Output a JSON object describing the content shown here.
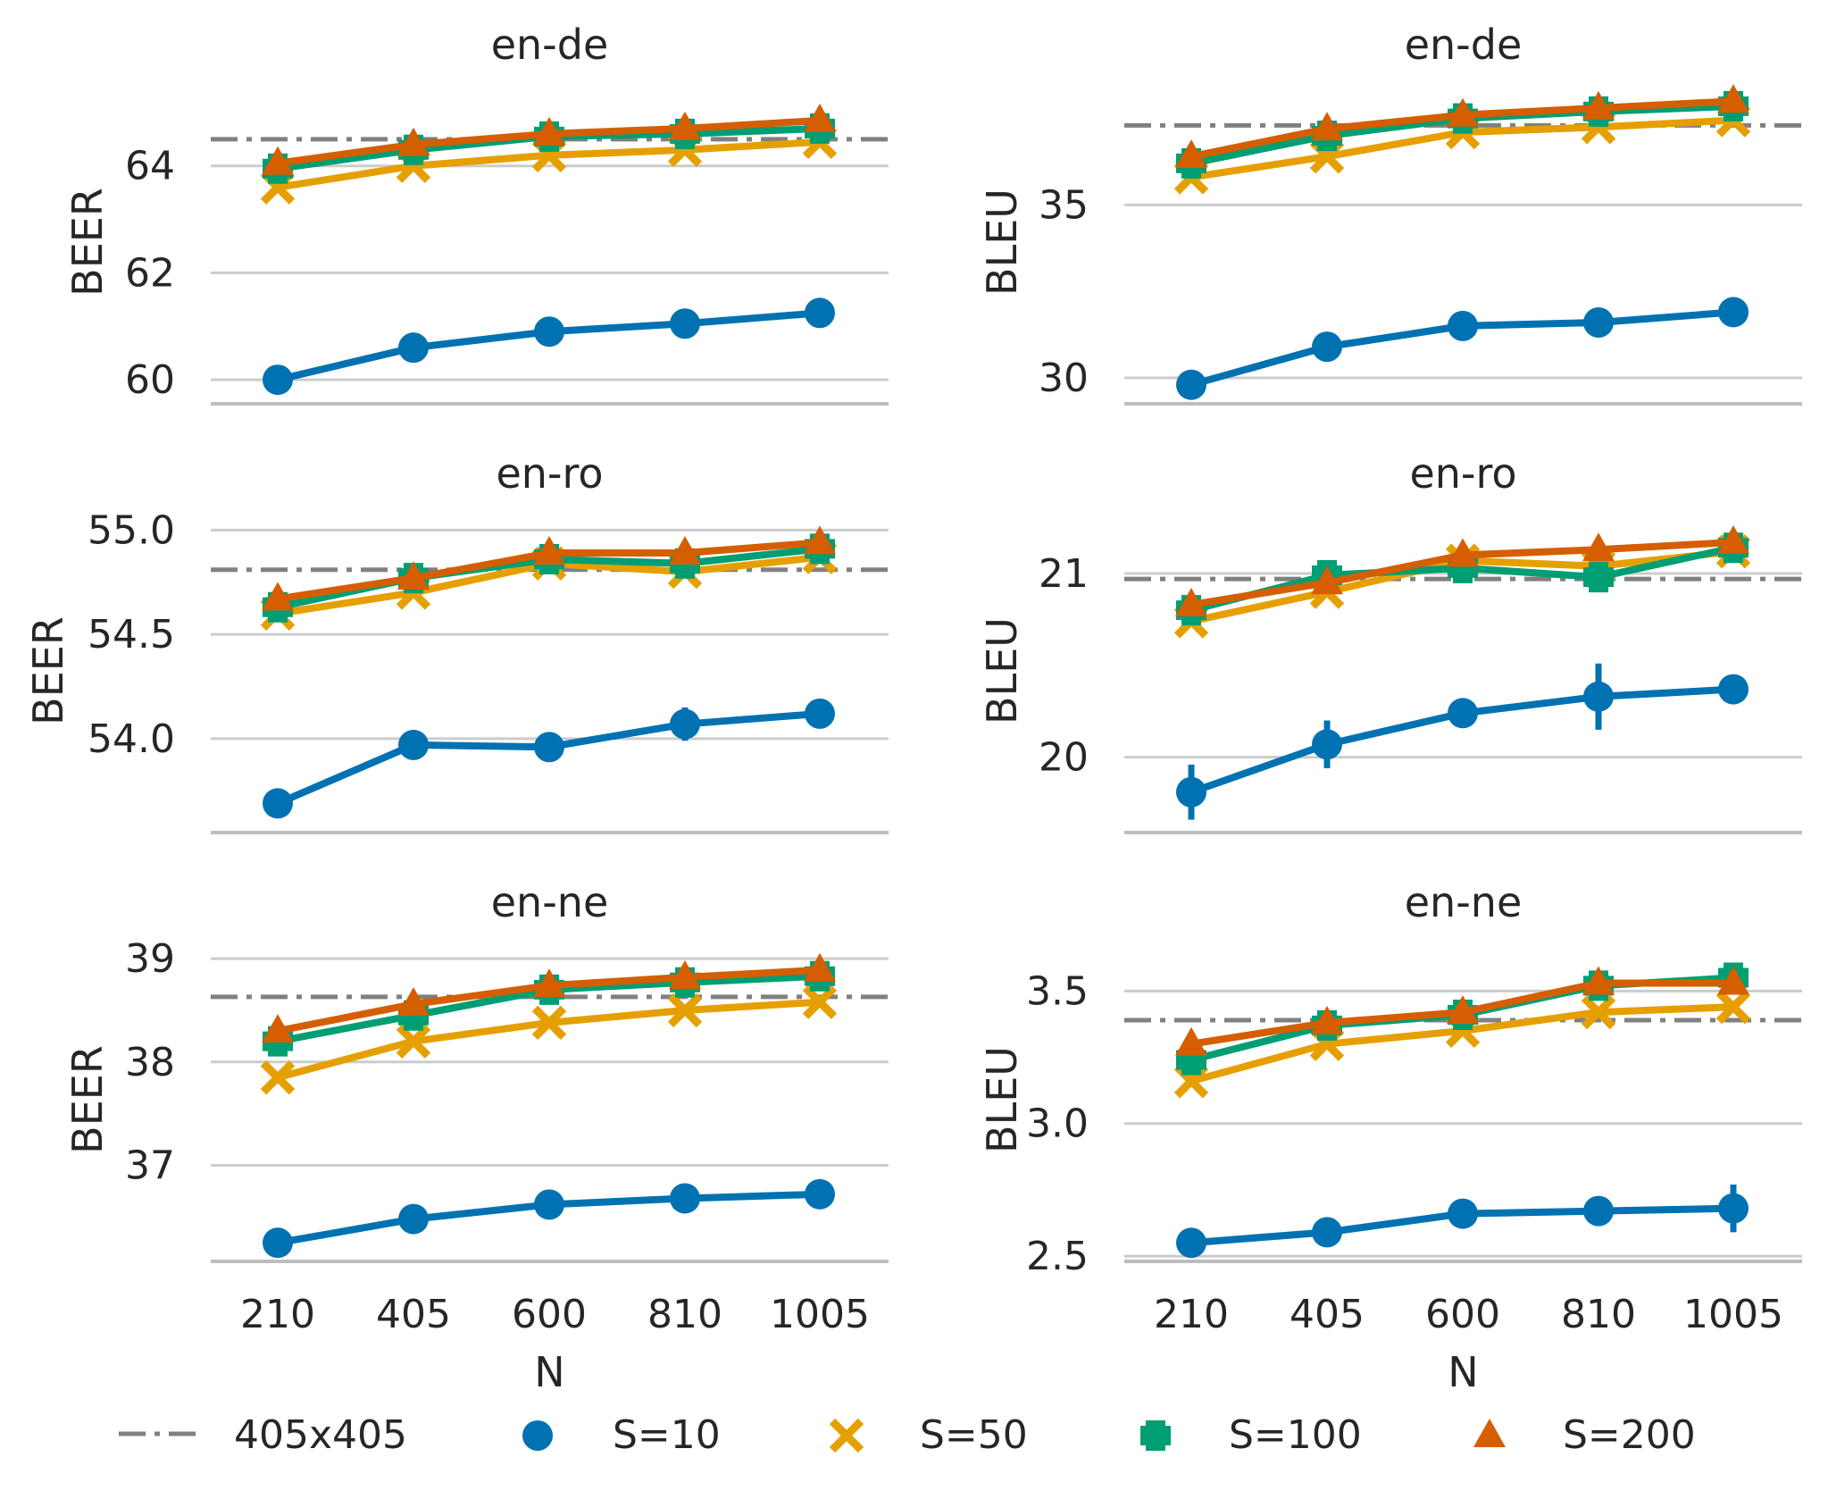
{
  "legend": {
    "baseline_label": "405x405",
    "entries": [
      {
        "label": "S=10",
        "marker": "circle",
        "color": "#0072b2"
      },
      {
        "label": "S=50",
        "marker": "x",
        "color": "#e69f00"
      },
      {
        "label": "S=100",
        "marker": "plus",
        "color": "#009e73"
      },
      {
        "label": "S=200",
        "marker": "triangle",
        "color": "#d55e00"
      }
    ],
    "baseline_color": "#808080"
  },
  "chart_data": [
    {
      "type": "line",
      "title": "en-de",
      "ylabel": "BEER",
      "xlabel": "",
      "categories": [
        "210",
        "405",
        "600",
        "810",
        "1005"
      ],
      "ylim": [
        59.55,
        65.6
      ],
      "yticks": [
        "60",
        "62",
        "64"
      ],
      "ytick_values": [
        60,
        62,
        64
      ],
      "baseline": 64.5,
      "series": [
        {
          "name": "S=10",
          "values": [
            60.0,
            60.6,
            60.9,
            61.05,
            61.25
          ],
          "err": [
            0,
            0,
            0,
            0,
            0
          ]
        },
        {
          "name": "S=50",
          "values": [
            63.6,
            64.0,
            64.2,
            64.3,
            64.45
          ],
          "err": [
            0,
            0,
            0,
            0,
            0
          ]
        },
        {
          "name": "S=100",
          "values": [
            63.95,
            64.3,
            64.55,
            64.6,
            64.7
          ],
          "err": [
            0,
            0,
            0,
            0,
            0
          ]
        },
        {
          "name": "S=200",
          "values": [
            64.05,
            64.4,
            64.6,
            64.7,
            64.85
          ],
          "err": [
            0,
            0,
            0,
            0,
            0
          ]
        }
      ]
    },
    {
      "type": "line",
      "title": "en-de",
      "ylabel": "BLEU",
      "xlabel": "",
      "categories": [
        "210",
        "405",
        "600",
        "810",
        "1005"
      ],
      "ylim": [
        29.25,
        38.6
      ],
      "yticks": [
        "30",
        "35"
      ],
      "ytick_values": [
        30,
        35
      ],
      "baseline": 37.3,
      "series": [
        {
          "name": "S=10",
          "values": [
            29.8,
            30.9,
            31.5,
            31.6,
            31.9
          ],
          "err": [
            0,
            0,
            0,
            0,
            0
          ]
        },
        {
          "name": "S=50",
          "values": [
            35.8,
            36.4,
            37.1,
            37.25,
            37.45
          ],
          "err": [
            0,
            0,
            0,
            0,
            0
          ]
        },
        {
          "name": "S=100",
          "values": [
            36.2,
            37.0,
            37.5,
            37.7,
            37.85
          ],
          "err": [
            0,
            0,
            0,
            0,
            0
          ]
        },
        {
          "name": "S=200",
          "values": [
            36.4,
            37.2,
            37.6,
            37.8,
            38.0
          ],
          "err": [
            0,
            0,
            0,
            0,
            0
          ]
        }
      ]
    },
    {
      "type": "line",
      "title": "en-ro",
      "ylabel": "BEER",
      "xlabel": "",
      "categories": [
        "210",
        "405",
        "600",
        "810",
        "1005"
      ],
      "ylim": [
        53.55,
        55.1
      ],
      "yticks": [
        "54.0",
        "54.5",
        "55.0"
      ],
      "ytick_values": [
        54.0,
        54.5,
        55.0
      ],
      "baseline": 54.81,
      "series": [
        {
          "name": "S=10",
          "values": [
            53.69,
            53.97,
            53.96,
            54.07,
            54.12
          ],
          "err": [
            0.05,
            0.03,
            0.05,
            0.08,
            0.05
          ]
        },
        {
          "name": "S=50",
          "values": [
            54.6,
            54.7,
            54.84,
            54.8,
            54.87
          ],
          "err": [
            0,
            0,
            0,
            0,
            0
          ]
        },
        {
          "name": "S=100",
          "values": [
            54.63,
            54.77,
            54.86,
            54.84,
            54.91
          ],
          "err": [
            0,
            0,
            0,
            0,
            0
          ]
        },
        {
          "name": "S=200",
          "values": [
            54.67,
            54.77,
            54.89,
            54.89,
            54.94
          ],
          "err": [
            0,
            0,
            0,
            0,
            0
          ]
        }
      ]
    },
    {
      "type": "line",
      "title": "en-ro",
      "ylabel": "BLEU",
      "xlabel": "",
      "categories": [
        "210",
        "405",
        "600",
        "810",
        "1005"
      ],
      "ylim": [
        19.59,
        21.35
      ],
      "yticks": [
        "20",
        "21"
      ],
      "ytick_values": [
        20,
        21
      ],
      "baseline": 20.97,
      "series": [
        {
          "name": "S=10",
          "values": [
            19.81,
            20.07,
            20.24,
            20.33,
            20.37
          ],
          "err": [
            0.15,
            0.13,
            0.03,
            0.18,
            0.06
          ]
        },
        {
          "name": "S=50",
          "values": [
            20.74,
            20.9,
            21.07,
            21.04,
            21.12
          ],
          "err": [
            0,
            0,
            0,
            0,
            0
          ]
        },
        {
          "name": "S=100",
          "values": [
            20.8,
            20.99,
            21.03,
            20.98,
            21.14
          ],
          "err": [
            0,
            0,
            0,
            0,
            0
          ]
        },
        {
          "name": "S=200",
          "values": [
            20.83,
            20.95,
            21.1,
            21.13,
            21.17
          ],
          "err": [
            0,
            0,
            0,
            0,
            0
          ]
        }
      ]
    },
    {
      "type": "line",
      "title": "en-ne",
      "ylabel": "BEER",
      "xlabel": "N",
      "categories": [
        "210",
        "405",
        "600",
        "810",
        "1005"
      ],
      "ylim": [
        36.07,
        39.2
      ],
      "yticks": [
        "37",
        "38",
        "39"
      ],
      "ytick_values": [
        37,
        38,
        39
      ],
      "baseline": 38.63,
      "series": [
        {
          "name": "S=10",
          "values": [
            36.25,
            36.48,
            36.62,
            36.68,
            36.72
          ],
          "err": [
            0,
            0,
            0,
            0,
            0
          ]
        },
        {
          "name": "S=50",
          "values": [
            37.85,
            38.2,
            38.38,
            38.5,
            38.58
          ],
          "err": [
            0,
            0,
            0,
            0,
            0
          ]
        },
        {
          "name": "S=100",
          "values": [
            38.2,
            38.45,
            38.7,
            38.77,
            38.83
          ],
          "err": [
            0,
            0,
            0,
            0,
            0
          ]
        },
        {
          "name": "S=200",
          "values": [
            38.3,
            38.56,
            38.74,
            38.82,
            38.89
          ],
          "err": [
            0,
            0,
            0,
            0,
            0
          ]
        }
      ]
    },
    {
      "type": "line",
      "title": "en-ne",
      "ylabel": "BLEU",
      "xlabel": "N",
      "categories": [
        "210",
        "405",
        "600",
        "810",
        "1005"
      ],
      "ylim": [
        2.48,
        3.7
      ],
      "yticks": [
        "2.5",
        "3.0",
        "3.5"
      ],
      "ytick_values": [
        2.5,
        3.0,
        3.5
      ],
      "baseline": 3.39,
      "series": [
        {
          "name": "S=10",
          "values": [
            2.55,
            2.59,
            2.66,
            2.67,
            2.68
          ],
          "err": [
            0,
            0.03,
            0,
            0.05,
            0.09
          ]
        },
        {
          "name": "S=50",
          "values": [
            3.16,
            3.3,
            3.35,
            3.42,
            3.44
          ],
          "err": [
            0,
            0,
            0,
            0,
            0
          ]
        },
        {
          "name": "S=100",
          "values": [
            3.24,
            3.37,
            3.41,
            3.52,
            3.55
          ],
          "err": [
            0,
            0,
            0,
            0,
            0
          ]
        },
        {
          "name": "S=200",
          "values": [
            3.3,
            3.38,
            3.42,
            3.53,
            3.53
          ],
          "err": [
            0,
            0,
            0,
            0,
            0
          ]
        }
      ]
    }
  ]
}
